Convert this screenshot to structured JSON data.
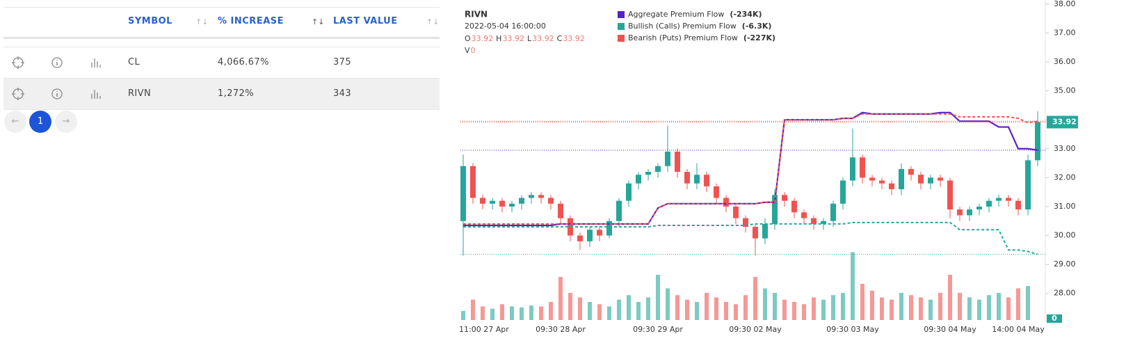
{
  "table": {
    "headers": [
      "SYMBOL",
      "% INCREASE",
      "LAST VALUE"
    ],
    "rows": [
      [
        "CL",
        "4,066.67%",
        "375"
      ],
      [
        "RIVN",
        "1,272%",
        "343"
      ]
    ]
  },
  "pagination": {
    "current": "1"
  },
  "chart_data": {
    "type": "candlestick",
    "symbol": "RIVN",
    "datetime": "2022-05-04 16:00:00",
    "ohlc_legend": [
      {
        "label": "O",
        "value": 33.92
      },
      {
        "label": "H",
        "value": 33.92
      },
      {
        "label": "L",
        "value": 33.92
      },
      {
        "label": "C",
        "value": 33.92
      },
      {
        "label": "V",
        "value": 0
      }
    ],
    "categories": [
      "11:00 27 Apr",
      null,
      null,
      null,
      null,
      null,
      null,
      null,
      null,
      null,
      "09:30 28 Apr",
      null,
      null,
      null,
      null,
      null,
      null,
      null,
      null,
      null,
      "09:30 29 Apr",
      null,
      null,
      null,
      null,
      null,
      null,
      null,
      null,
      null,
      "09:30 02 May",
      null,
      null,
      null,
      null,
      null,
      null,
      null,
      null,
      null,
      "09:30 03 May",
      null,
      null,
      null,
      null,
      null,
      null,
      null,
      null,
      null,
      "09:30 04 May",
      null,
      null,
      null,
      null,
      null,
      null,
      "14:00 04 May",
      null,
      null
    ],
    "open": [
      30.5,
      32.4,
      31.3,
      31.1,
      31.2,
      31.0,
      31.1,
      31.3,
      31.4,
      31.3,
      31.1,
      30.6,
      30.0,
      29.8,
      30.2,
      30.0,
      30.5,
      31.2,
      31.8,
      32.1,
      32.2,
      32.4,
      32.9,
      32.2,
      31.8,
      32.1,
      31.7,
      31.3,
      31.0,
      30.6,
      30.3,
      29.9,
      30.4,
      31.4,
      31.2,
      30.8,
      30.6,
      30.4,
      30.5,
      31.1,
      31.9,
      32.7,
      32.0,
      31.9,
      31.8,
      31.6,
      32.3,
      32.1,
      31.8,
      32.0,
      31.9,
      30.9,
      30.7,
      30.9,
      31.0,
      31.2,
      31.3,
      31.2,
      30.9,
      32.6
    ],
    "high": [
      32.8,
      32.5,
      31.4,
      31.3,
      31.3,
      31.2,
      31.4,
      31.5,
      31.5,
      31.4,
      31.2,
      30.7,
      30.1,
      30.3,
      30.3,
      30.6,
      31.3,
      31.9,
      32.2,
      32.3,
      32.5,
      33.8,
      33.0,
      32.3,
      32.5,
      32.2,
      31.8,
      31.4,
      31.1,
      30.7,
      30.4,
      30.6,
      31.6,
      31.5,
      31.3,
      30.9,
      30.7,
      30.6,
      31.2,
      32.0,
      33.7,
      32.8,
      32.1,
      32.0,
      31.9,
      32.5,
      32.4,
      32.2,
      32.1,
      32.1,
      32.0,
      31.0,
      31.0,
      31.1,
      31.3,
      31.4,
      31.4,
      31.3,
      32.8,
      34.3
    ],
    "low": [
      29.3,
      31.1,
      30.9,
      30.9,
      30.8,
      30.8,
      30.9,
      31.1,
      31.1,
      30.9,
      30.4,
      29.8,
      29.5,
      29.6,
      29.8,
      29.9,
      30.3,
      31.0,
      31.6,
      31.9,
      32.0,
      32.2,
      32.0,
      31.6,
      31.6,
      31.5,
      31.1,
      30.8,
      30.4,
      30.1,
      29.3,
      29.7,
      30.2,
      31.0,
      30.6,
      30.4,
      30.2,
      30.2,
      30.3,
      30.9,
      31.7,
      31.8,
      31.7,
      31.6,
      31.4,
      31.4,
      31.9,
      31.6,
      31.6,
      31.7,
      30.6,
      30.5,
      30.5,
      30.7,
      30.8,
      31.0,
      31.0,
      30.7,
      30.7,
      32.4
    ],
    "close": [
      32.4,
      31.3,
      31.1,
      31.2,
      31.0,
      31.1,
      31.3,
      31.4,
      31.3,
      31.1,
      30.6,
      30.0,
      29.8,
      30.2,
      30.0,
      30.5,
      31.2,
      31.8,
      32.1,
      32.2,
      32.4,
      32.9,
      32.2,
      31.8,
      32.1,
      31.7,
      31.3,
      31.0,
      30.6,
      30.3,
      29.9,
      30.4,
      31.4,
      31.2,
      30.8,
      30.6,
      30.4,
      30.5,
      31.1,
      31.9,
      32.7,
      32.0,
      31.9,
      31.8,
      31.6,
      32.3,
      32.1,
      31.8,
      32.0,
      31.9,
      30.9,
      30.7,
      30.9,
      31.0,
      31.2,
      31.3,
      31.2,
      30.9,
      32.6,
      33.92
    ],
    "volume": [
      20,
      45,
      30,
      25,
      35,
      30,
      28,
      32,
      30,
      40,
      95,
      60,
      50,
      40,
      35,
      30,
      45,
      55,
      40,
      50,
      100,
      70,
      55,
      45,
      40,
      60,
      50,
      40,
      35,
      55,
      95,
      70,
      60,
      45,
      40,
      35,
      50,
      45,
      55,
      60,
      150,
      80,
      65,
      50,
      45,
      60,
      55,
      50,
      45,
      60,
      100,
      60,
      50,
      45,
      55,
      60,
      50,
      70,
      75,
      0
    ],
    "vlim": [
      0,
      100
    ],
    "up_color": "#26a69a",
    "down_color": "#ef5350",
    "series": [
      {
        "name": "Aggregate Premium Flow",
        "value_label": "(-234K)",
        "color": "#5b1fc4",
        "dashed": false,
        "values": [
          30.35,
          30.35,
          30.35,
          30.35,
          30.35,
          30.35,
          30.35,
          30.35,
          30.35,
          30.35,
          30.4,
          30.4,
          30.4,
          30.4,
          30.4,
          30.4,
          30.4,
          30.4,
          30.4,
          30.4,
          30.95,
          31.1,
          31.1,
          31.1,
          31.1,
          31.1,
          31.1,
          31.1,
          31.1,
          31.1,
          31.1,
          31.15,
          31.15,
          34.0,
          34.0,
          34.0,
          34.0,
          34.0,
          34.0,
          34.05,
          34.05,
          34.25,
          34.2,
          34.2,
          34.2,
          34.2,
          34.2,
          34.2,
          34.2,
          34.25,
          34.25,
          33.95,
          33.95,
          33.95,
          33.95,
          33.75,
          33.75,
          33.0,
          33.0,
          32.95
        ]
      },
      {
        "name": "Bullish (Calls) Premium Flow",
        "value_label": "(-6.3K)",
        "color": "#26a69a",
        "dashed": true,
        "values": [
          30.3,
          30.3,
          30.3,
          30.3,
          30.3,
          30.3,
          30.3,
          30.3,
          30.3,
          30.3,
          30.3,
          30.3,
          30.3,
          30.3,
          30.3,
          30.3,
          30.3,
          30.3,
          30.3,
          30.3,
          30.35,
          30.35,
          30.35,
          30.35,
          30.35,
          30.35,
          30.35,
          30.35,
          30.35,
          30.35,
          30.4,
          30.4,
          30.4,
          30.4,
          30.4,
          30.4,
          30.4,
          30.4,
          30.4,
          30.4,
          30.45,
          30.45,
          30.45,
          30.45,
          30.45,
          30.45,
          30.45,
          30.45,
          30.45,
          30.45,
          30.45,
          30.2,
          30.2,
          30.2,
          30.2,
          30.2,
          29.5,
          29.5,
          29.45,
          29.35
        ]
      },
      {
        "name": "Bearish (Puts) Premium Flow",
        "value_label": "(-227K)",
        "color": "#ef5350",
        "dashed": true,
        "values": [
          30.4,
          30.4,
          30.4,
          30.4,
          30.4,
          30.4,
          30.4,
          30.4,
          30.4,
          30.4,
          30.4,
          30.4,
          30.4,
          30.4,
          30.4,
          30.4,
          30.4,
          30.4,
          30.4,
          30.4,
          30.95,
          31.1,
          31.1,
          31.1,
          31.1,
          31.1,
          31.1,
          31.1,
          31.1,
          31.1,
          31.1,
          31.15,
          31.15,
          34.0,
          34.0,
          34.0,
          34.0,
          34.0,
          34.0,
          34.05,
          34.05,
          34.2,
          34.2,
          34.2,
          34.2,
          34.2,
          34.2,
          34.2,
          34.2,
          34.2,
          34.2,
          34.1,
          34.1,
          34.1,
          34.1,
          34.1,
          34.1,
          34.05,
          33.9,
          33.95
        ]
      }
    ],
    "ylim": [
      27.08,
      38.14
    ],
    "yticks": [
      {
        "value": 28,
        "label": "28.00"
      },
      {
        "value": 29,
        "label": "29.00"
      },
      {
        "value": 30,
        "label": "30.00"
      },
      {
        "value": 31,
        "label": "31.00"
      },
      {
        "value": 32,
        "label": "32.00"
      },
      {
        "value": 33,
        "label": "33.00"
      },
      {
        "value": 34,
        "label": "34.00"
      },
      {
        "value": 35,
        "label": "35.00"
      },
      {
        "value": 36,
        "label": "36.00"
      },
      {
        "value": 37,
        "label": "37.00"
      },
      {
        "value": 38,
        "label": "38.00"
      }
    ]
  }
}
